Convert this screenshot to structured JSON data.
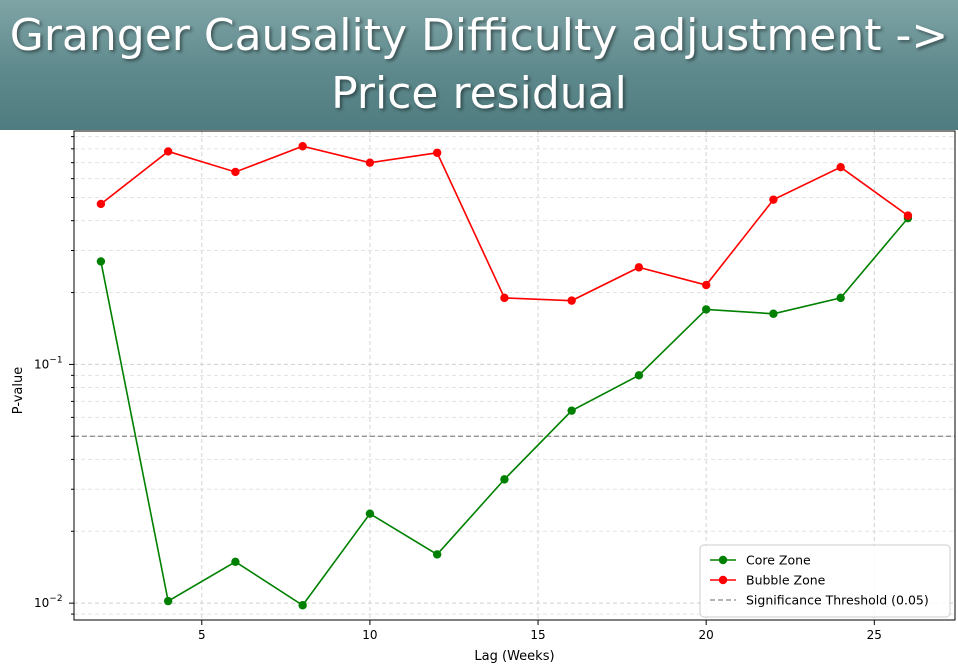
{
  "slide": {
    "title": "Granger Causality Difficulty adjustment -> Price residual"
  },
  "chart_data": {
    "type": "line",
    "title": "",
    "xlabel": "Lag (Weeks)",
    "ylabel": "P-value",
    "yscale": "log",
    "xlim": [
      1.2,
      27.4
    ],
    "ylim": [
      0.0085,
      0.95
    ],
    "xticks": [
      5,
      10,
      15,
      20,
      25
    ],
    "yticks": [
      {
        "value": 0.01,
        "base": "10",
        "exponent": "−2"
      },
      {
        "value": 0.1,
        "base": "10",
        "exponent": "−1"
      }
    ],
    "grid": true,
    "legend_position": "lower-right",
    "x": [
      2,
      4,
      6,
      8,
      10,
      12,
      14,
      16,
      18,
      20,
      22,
      24,
      26
    ],
    "series": [
      {
        "name": "Core Zone",
        "color": "#008000",
        "values": [
          0.27,
          0.0102,
          0.0149,
          0.0098,
          0.0237,
          0.016,
          0.033,
          0.064,
          0.09,
          0.17,
          0.163,
          0.19,
          0.41
        ]
      },
      {
        "name": "Bubble Zone",
        "color": "#ff0000",
        "values": [
          0.47,
          0.78,
          0.64,
          0.82,
          0.7,
          0.77,
          0.19,
          0.185,
          0.255,
          0.215,
          0.49,
          0.67,
          0.42
        ]
      }
    ],
    "threshold": {
      "name": "Significance Threshold (0.05)",
      "value": 0.05,
      "color": "#888888"
    }
  }
}
